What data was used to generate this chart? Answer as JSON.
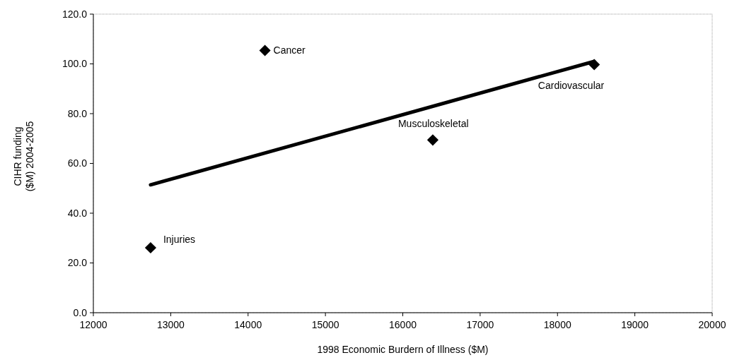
{
  "chart_data": {
    "type": "scatter",
    "xlabel": "1998 Economic Burdern of Illness ($M)",
    "ylabel": "CIHR funding\n($M) 2004-2005",
    "xlim": [
      12000,
      20000
    ],
    "xticks": [
      12000,
      13000,
      14000,
      15000,
      16000,
      17000,
      18000,
      19000,
      20000
    ],
    "ylim": [
      0,
      120
    ],
    "yticks": [
      {
        "value": 0,
        "label": "0.0"
      },
      {
        "value": 20,
        "label": "20.0"
      },
      {
        "value": 40,
        "label": "40.0"
      },
      {
        "value": 60,
        "label": "60.0"
      },
      {
        "value": 80,
        "label": "80.0"
      },
      {
        "value": 100,
        "label": "100.0"
      },
      {
        "value": 120,
        "label": "120.0"
      }
    ],
    "grid": false,
    "marker": "diamond",
    "series": [
      {
        "color": "#000000",
        "x": [
          12740,
          14218,
          16388,
          18475
        ],
        "values": [
          26.1,
          105.4,
          69.4,
          99.7
        ]
      },
      {
        "type": "line",
        "marker": "none",
        "color": "#000000",
        "x": [
          12740,
          18475
        ],
        "values": [
          51.4,
          101.0
        ]
      }
    ],
    "annotations": [
      {
        "text": "Injuries",
        "x": 12740,
        "y": 26.1
      },
      {
        "text": "Cancer",
        "x": 14218,
        "y": 105.4
      },
      {
        "text": "Musculoskeletal",
        "x": 16388,
        "y": 69.4
      },
      {
        "text": "Cardiovascular",
        "x": 18475,
        "y": 99.7
      }
    ]
  }
}
